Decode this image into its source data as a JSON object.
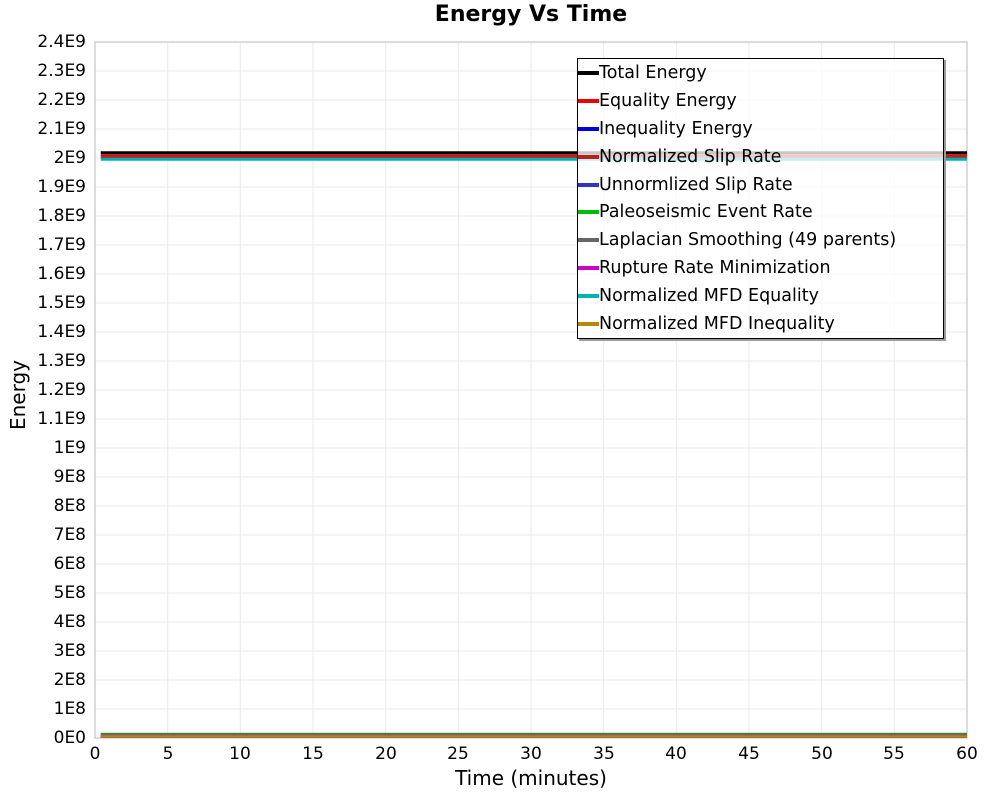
{
  "chart_data": {
    "type": "line",
    "title": "Energy Vs Time",
    "xlabel": "Time (minutes)",
    "ylabel": "Energy",
    "xlim": [
      0,
      60
    ],
    "ylim": [
      0,
      2400000000
    ],
    "x_data_range": [
      0.4,
      60
    ],
    "grid": true,
    "legend_position": "top-right",
    "x_ticks": [
      0,
      5,
      10,
      15,
      20,
      25,
      30,
      35,
      40,
      45,
      50,
      55,
      60
    ],
    "y_tick_values": [
      0,
      100000000,
      200000000,
      300000000,
      400000000,
      500000000,
      600000000,
      700000000,
      800000000,
      900000000,
      1000000000,
      1100000000,
      1200000000,
      1300000000,
      1400000000,
      1500000000,
      1600000000,
      1700000000,
      1800000000,
      1900000000,
      2000000000,
      2100000000,
      2200000000,
      2300000000,
      2400000000
    ],
    "y_tick_labels": [
      "0E0",
      "1E8",
      "2E8",
      "3E8",
      "4E8",
      "5E8",
      "6E8",
      "7E8",
      "8E8",
      "9E8",
      "1E9",
      "1.1E9",
      "1.2E9",
      "1.3E9",
      "1.4E9",
      "1.5E9",
      "1.6E9",
      "1.7E9",
      "1.8E9",
      "1.9E9",
      "2E9",
      "2.1E9",
      "2.2E9",
      "2.3E9",
      "2.4E9"
    ],
    "series": [
      {
        "name": "Total Energy",
        "color": "#000000",
        "value": 2018000000,
        "lw": 3
      },
      {
        "name": "Equality Energy",
        "color": "#ee0000",
        "value": 2008000000,
        "lw": 3
      },
      {
        "name": "Inequality Energy",
        "color": "#0000dd",
        "value": 5000000,
        "lw": 2.4
      },
      {
        "name": "Normalized Slip Rate",
        "color": "#b22222",
        "value": 2004000000,
        "lw": 3
      },
      {
        "name": "Unnormlized Slip Rate",
        "color": "#3333bb",
        "value": 5000000,
        "lw": 2.4
      },
      {
        "name": "Paleoseismic Event Rate",
        "color": "#00bb00",
        "value": 14000000,
        "lw": 2.4
      },
      {
        "name": "Laplacian Smoothing (49 parents)",
        "color": "#666666",
        "value": 12000000,
        "lw": 2.4
      },
      {
        "name": "Rupture Rate Minimization",
        "color": "#cc00cc",
        "value": 5000000,
        "lw": 2.4
      },
      {
        "name": "Normalized MFD Equality",
        "color": "#00b3b3",
        "value": 1996000000,
        "lw": 3
      },
      {
        "name": "Normalized MFD Inequality",
        "color": "#b8860b",
        "value": 5000000,
        "lw": 2.4
      }
    ],
    "colors": {
      "grid": "#e9e9e9",
      "plot_border": "#c4c4c4",
      "background": "#ffffff",
      "legend_border": "#000000"
    }
  }
}
